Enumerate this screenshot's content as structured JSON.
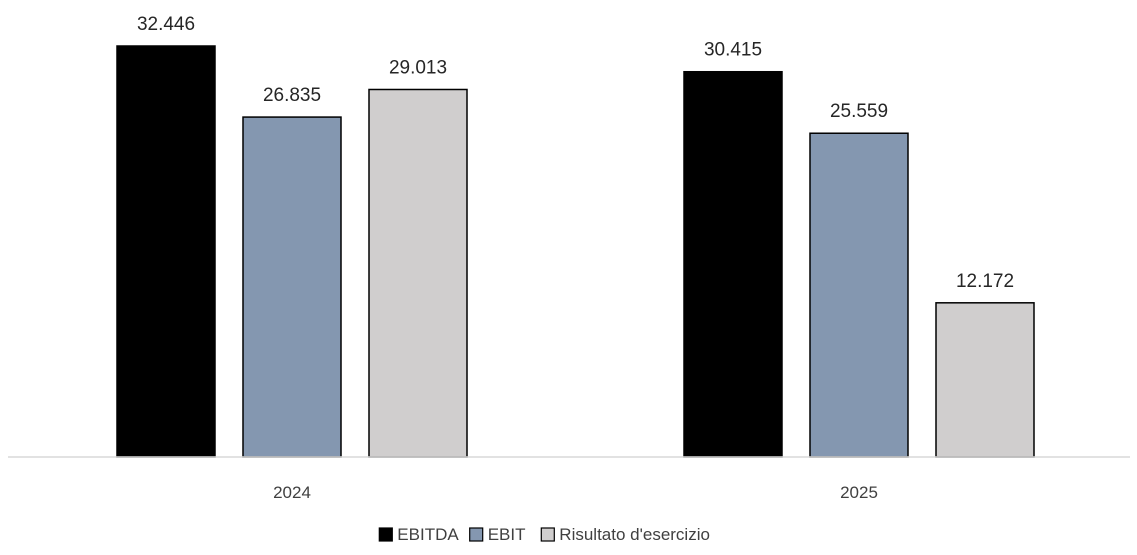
{
  "chart_data": {
    "type": "bar",
    "categories": [
      "2024",
      "2025"
    ],
    "series": [
      {
        "name": "EBITDA",
        "color": "#000000",
        "values": [
          32446,
          30415
        ],
        "labels": [
          "32.446",
          "30.415"
        ]
      },
      {
        "name": "EBIT",
        "color": "#8497B0",
        "values": [
          26835,
          25559
        ],
        "labels": [
          "26.835",
          "25.559"
        ]
      },
      {
        "name": "Risultato d'esercizio",
        "color": "#D0CECE",
        "values": [
          29013,
          12172
        ],
        "labels": [
          "29.013",
          "12.172"
        ]
      }
    ],
    "title": "",
    "xlabel": "",
    "ylabel": "",
    "ylim": [
      0,
      35000
    ],
    "grid": false,
    "legend": "bottom-center"
  }
}
